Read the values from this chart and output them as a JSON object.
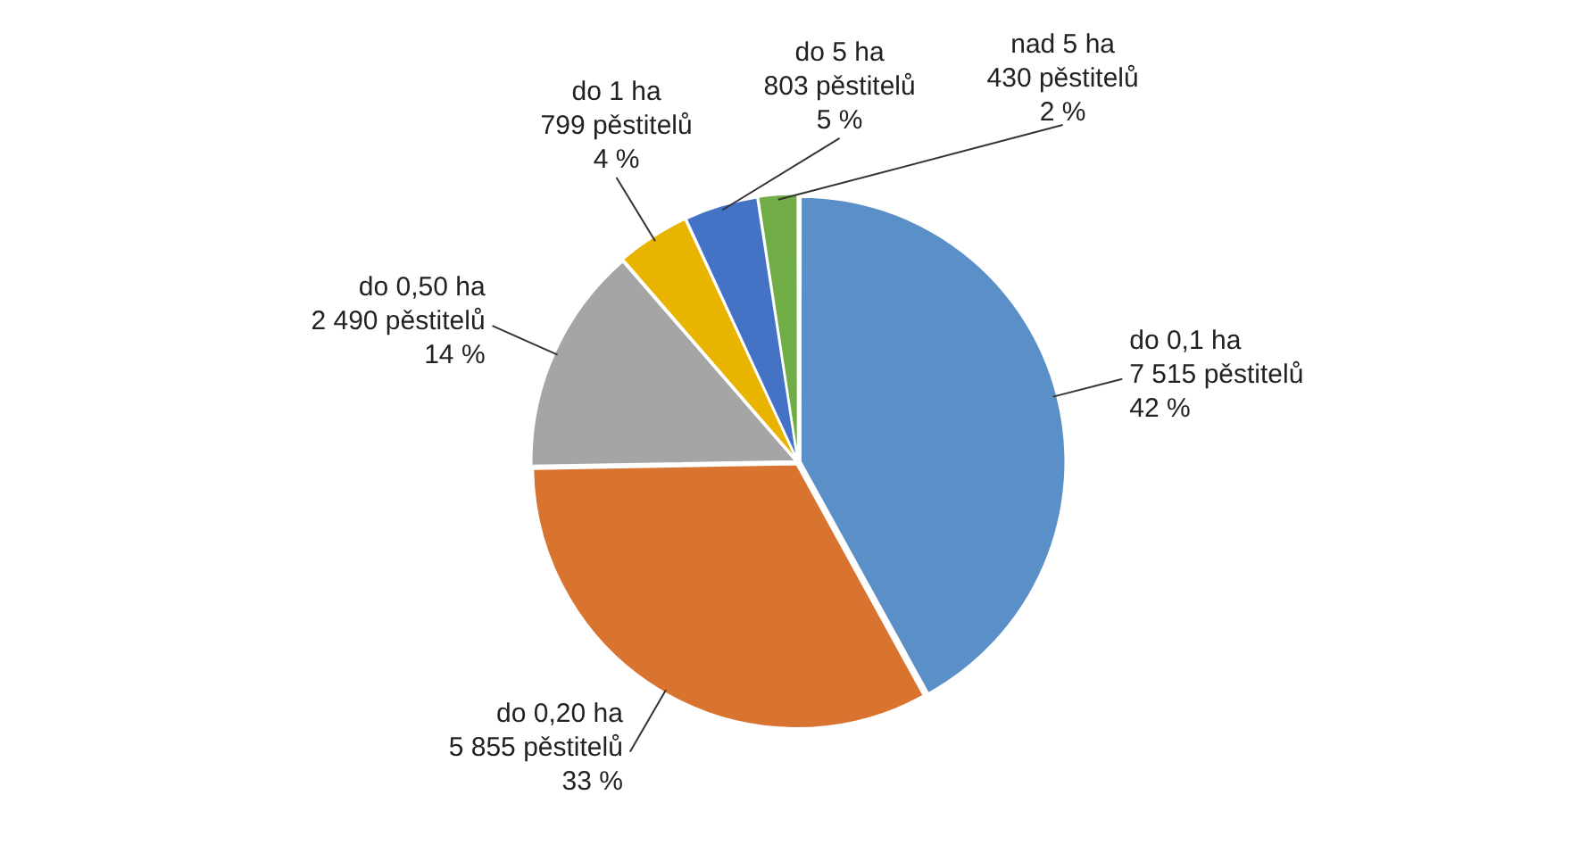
{
  "chart_data": {
    "type": "pie",
    "categories": [
      "do 0,1 ha",
      "do 0,20 ha",
      "do 0,50 ha",
      "do 1 ha",
      "do 5 ha",
      "nad 5 ha"
    ],
    "values": [
      7515,
      5855,
      2490,
      799,
      803,
      430
    ],
    "value_labels": [
      "7 515 pěstitelů\n42 %",
      "5 855 pěstitelů\n33 %",
      "2 490 pěstitelů\n14 %",
      "799 pěstitelů\n4 %",
      "803 pěstitelů\n5 %",
      "430 pěstitelů\n2 %"
    ],
    "colors": [
      "#5b8fc7",
      "#d97430",
      "#a5a5a5",
      "#e8b400",
      "#4472c4",
      "#70ad47"
    ],
    "legend": false
  }
}
